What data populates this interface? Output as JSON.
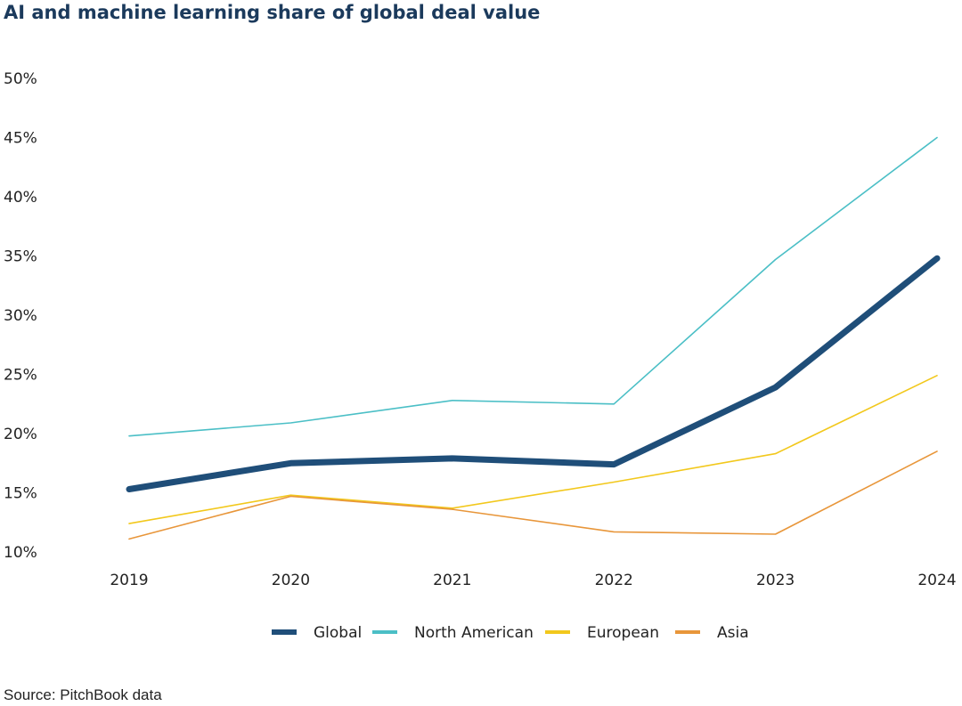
{
  "chart_data": {
    "type": "line",
    "title": "AI and machine learning share of global deal value",
    "categories": [
      "2019",
      "2020",
      "2021",
      "2022",
      "2023",
      "2024"
    ],
    "y_ticks": [
      "10%",
      "15%",
      "20%",
      "25%",
      "30%",
      "35%",
      "40%",
      "45%",
      "50%"
    ],
    "ylim": [
      10,
      50
    ],
    "y_unit": "%",
    "grid": false,
    "legend_position": "bottom-center",
    "series": [
      {
        "name": "Global",
        "color": "#1f4e79",
        "emphasis": "thick",
        "values": [
          15.3,
          17.5,
          17.9,
          17.4,
          23.9,
          34.8
        ]
      },
      {
        "name": "North American",
        "color": "#4bbfc6",
        "emphasis": "thin",
        "values": [
          19.8,
          20.9,
          22.8,
          22.5,
          34.7,
          45.0
        ]
      },
      {
        "name": "European",
        "color": "#f2c81c",
        "emphasis": "thin",
        "values": [
          12.4,
          14.8,
          13.7,
          15.9,
          18.3,
          24.9
        ]
      },
      {
        "name": "Asia",
        "color": "#e8963a",
        "emphasis": "thin",
        "values": [
          11.1,
          14.7,
          13.6,
          11.7,
          11.5,
          18.5
        ]
      }
    ]
  },
  "source": "Source: PitchBook data"
}
